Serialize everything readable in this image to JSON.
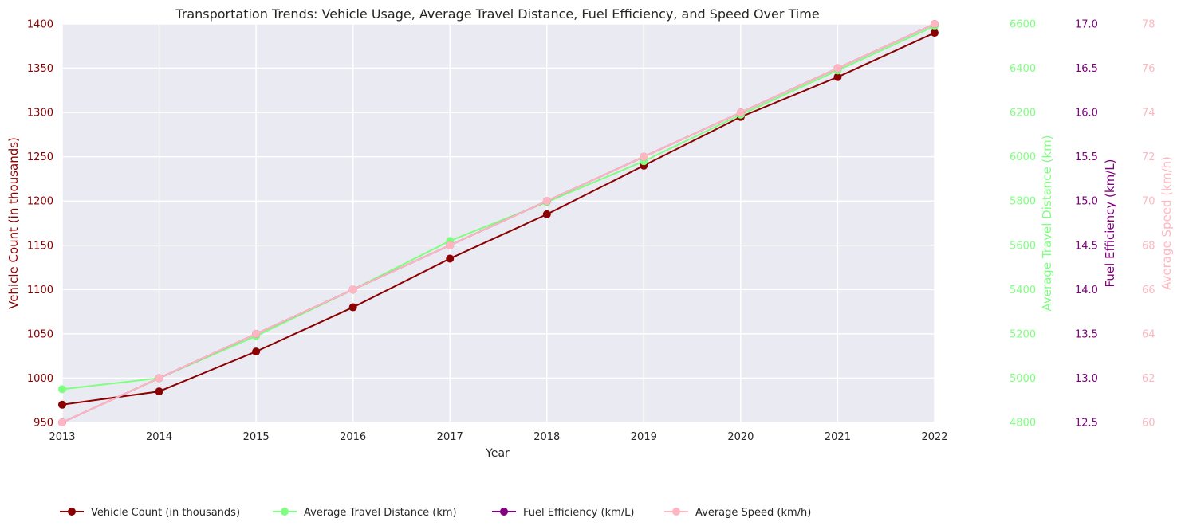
{
  "chart_data": {
    "type": "line",
    "title": "Transportation Trends: Vehicle Usage, Average Travel Distance, Fuel Efficiency, and Speed Over Time",
    "xlabel": "Year",
    "x": [
      2013,
      2014,
      2015,
      2016,
      2017,
      2018,
      2019,
      2020,
      2021,
      2022
    ],
    "xlim": [
      2013,
      2022
    ],
    "grid": true,
    "legend_position": "bottom-left",
    "series": [
      {
        "name": "Vehicle Count (in thousands)",
        "axis_label": "Vehicle Count (in thousands)",
        "color": "#8b0000",
        "ylim": [
          950,
          1400
        ],
        "ticks": [
          950,
          1000,
          1050,
          1100,
          1150,
          1200,
          1250,
          1300,
          1350,
          1400
        ],
        "values": [
          970,
          985,
          1030,
          1080,
          1135,
          1185,
          1240,
          1295,
          1340,
          1390
        ]
      },
      {
        "name": "Average Travel Distance (km)",
        "axis_label": "Average Travel Distance (km)",
        "color": "#7fff7f",
        "ylim": [
          4800,
          6600
        ],
        "ticks": [
          4800,
          5000,
          5200,
          5400,
          5600,
          5800,
          6000,
          6200,
          6400,
          6600
        ],
        "values": [
          4950,
          5000,
          5190,
          5400,
          5620,
          5795,
          5980,
          6190,
          6390,
          6590
        ]
      },
      {
        "name": "Fuel Efficiency (km/L)",
        "axis_label": "Fuel Efficiency (km/L)",
        "color": "#800080",
        "ylim": [
          12.5,
          17.0
        ],
        "ticks": [
          "12.5",
          "13.0",
          "13.5",
          "14.0",
          "14.5",
          "15.0",
          "15.5",
          "16.0",
          "16.5",
          "17.0"
        ],
        "values": [
          12.5,
          13.0,
          13.5,
          14.0,
          14.5,
          15.0,
          15.5,
          16.0,
          16.5,
          17.0
        ]
      },
      {
        "name": "Average Speed (km/h)",
        "axis_label": "Average Speed (km/h)",
        "color": "#ffb6c1",
        "ylim": [
          60,
          78
        ],
        "ticks": [
          60,
          62,
          64,
          66,
          68,
          70,
          72,
          74,
          76,
          78
        ],
        "values": [
          60,
          62,
          64,
          66,
          68,
          70,
          72,
          74,
          76,
          78
        ]
      }
    ]
  }
}
